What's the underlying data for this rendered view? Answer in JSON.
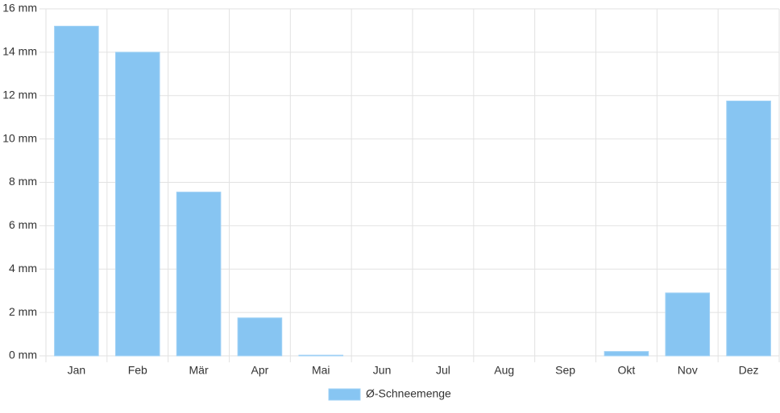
{
  "chart_data": {
    "type": "bar",
    "categories": [
      "Jan",
      "Feb",
      "Mär",
      "Apr",
      "Mai",
      "Jun",
      "Jul",
      "Aug",
      "Sep",
      "Okt",
      "Nov",
      "Dez"
    ],
    "series": [
      {
        "name": "Ø-Schneemenge",
        "color": "#87c5f2",
        "values": [
          15.2,
          14.0,
          7.55,
          1.75,
          0.03,
          0,
          0,
          0,
          0,
          0.2,
          2.9,
          11.75
        ]
      }
    ],
    "ylim": [
      0,
      16
    ],
    "yticks": [
      {
        "value": 0,
        "label": "0 mm"
      },
      {
        "value": 2,
        "label": "2 mm"
      },
      {
        "value": 4,
        "label": "4 mm"
      },
      {
        "value": 6,
        "label": "6 mm"
      },
      {
        "value": 8,
        "label": "8 mm"
      },
      {
        "value": 10,
        "label": "10 mm"
      },
      {
        "value": 12,
        "label": "12 mm"
      },
      {
        "value": 14,
        "label": "14 mm"
      },
      {
        "value": 16,
        "label": "16 mm"
      }
    ],
    "grid": true,
    "legend": "bottom"
  }
}
